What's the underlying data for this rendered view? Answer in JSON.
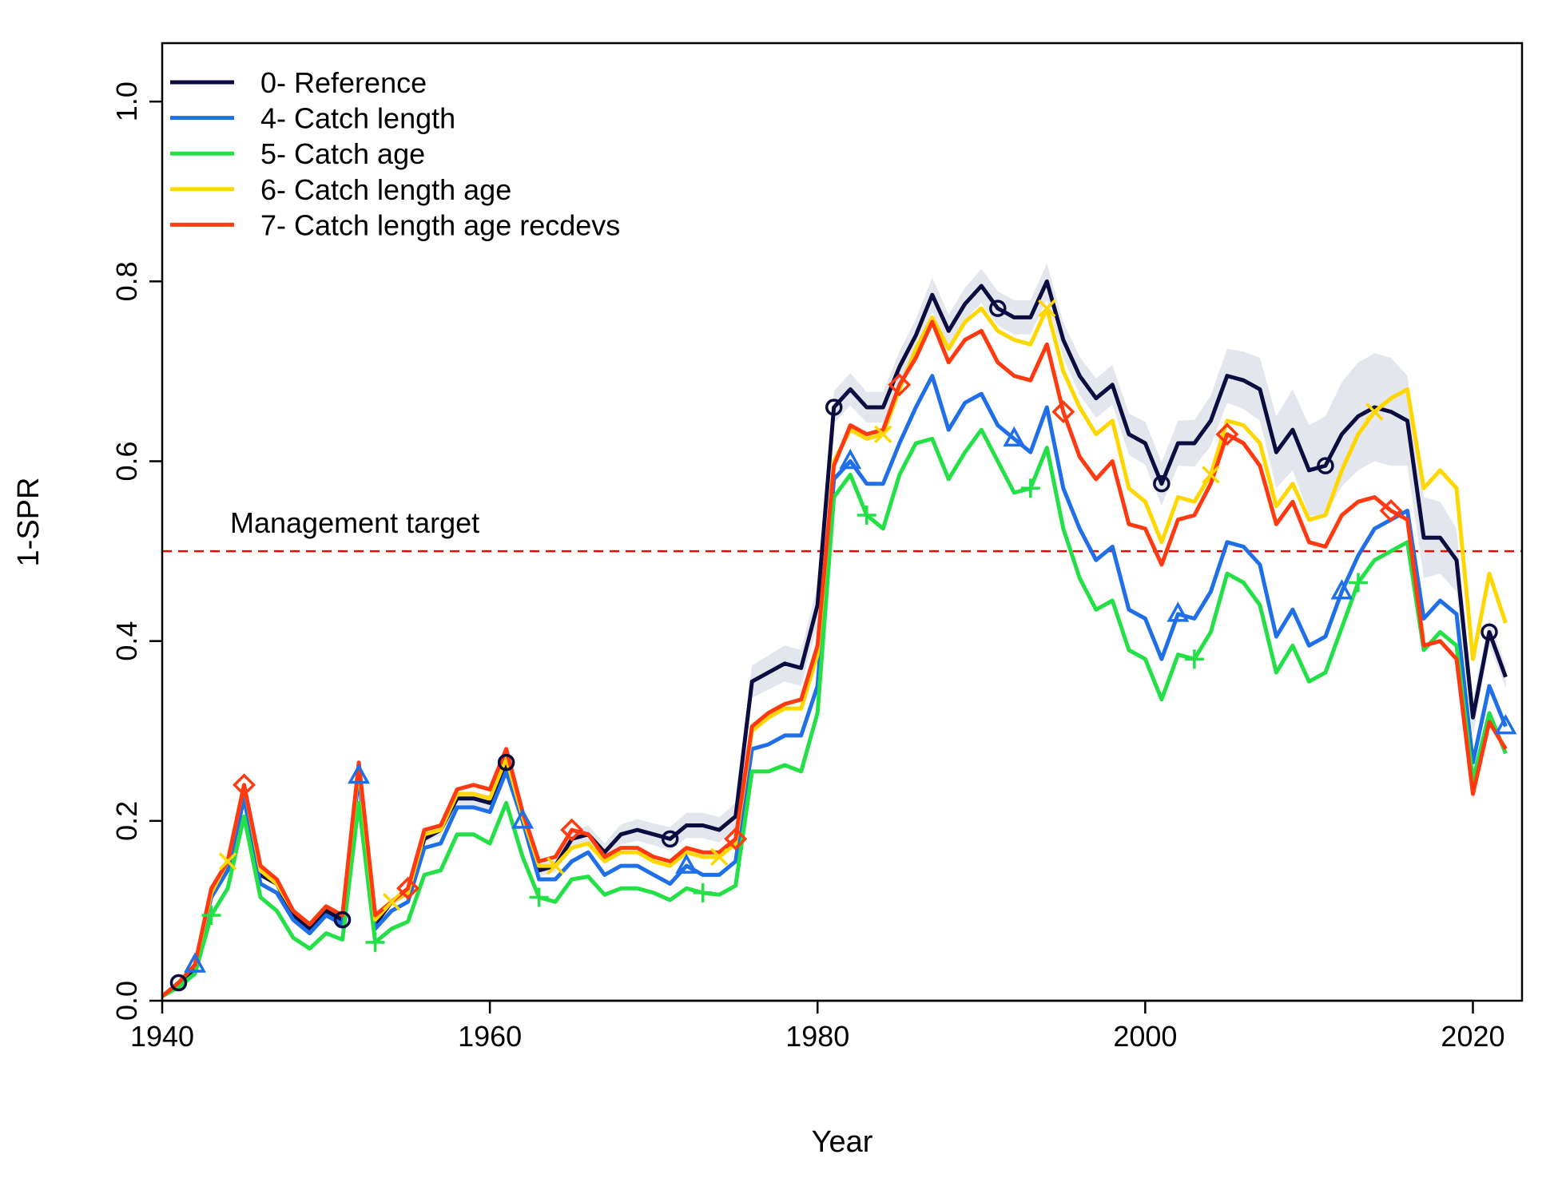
{
  "chart_data": {
    "type": "line",
    "title": "",
    "xlabel": "Year",
    "ylabel": "1-SPR",
    "xlim": [
      1940,
      2023
    ],
    "ylim": [
      0,
      1.065
    ],
    "x_ticks": [
      1940,
      1960,
      1980,
      2000,
      2020
    ],
    "x_tick_labels": [
      "1940",
      "1960",
      "1980",
      "2000",
      "2020"
    ],
    "y_ticks": [
      0,
      0.2,
      0.4,
      0.6,
      0.8,
      1.0
    ],
    "y_tick_labels": [
      "0.0",
      "0.2",
      "0.4",
      "0.6",
      "0.8",
      "1.0"
    ],
    "grid": false,
    "legend_position": "top-left",
    "reference_line": {
      "y": 0.5,
      "label": "Management target",
      "color": "#ff0000",
      "style": "dashed"
    },
    "x": [
      1940,
      1941,
      1942,
      1943,
      1944,
      1945,
      1946,
      1947,
      1948,
      1949,
      1950,
      1951,
      1952,
      1953,
      1954,
      1955,
      1956,
      1957,
      1958,
      1959,
      1960,
      1961,
      1962,
      1963,
      1964,
      1965,
      1966,
      1967,
      1968,
      1969,
      1970,
      1971,
      1972,
      1973,
      1974,
      1975,
      1976,
      1977,
      1978,
      1979,
      1980,
      1981,
      1982,
      1983,
      1984,
      1985,
      1986,
      1987,
      1988,
      1989,
      1990,
      1991,
      1992,
      1993,
      1994,
      1995,
      1996,
      1997,
      1998,
      1999,
      2000,
      2001,
      2002,
      2003,
      2004,
      2005,
      2006,
      2007,
      2008,
      2009,
      2010,
      2011,
      2012,
      2013,
      2014,
      2015,
      2016,
      2017,
      2018,
      2019,
      2020,
      2021,
      2022
    ],
    "series": [
      {
        "name": "0- Reference",
        "color": "#0b0c3f",
        "marker": "circle",
        "values": [
          0.005,
          0.02,
          0.035,
          0.12,
          0.155,
          0.235,
          0.14,
          0.13,
          0.095,
          0.08,
          0.1,
          0.09,
          0.255,
          0.085,
          0.11,
          0.12,
          0.18,
          0.19,
          0.225,
          0.225,
          0.22,
          0.265,
          0.2,
          0.145,
          0.15,
          0.18,
          0.185,
          0.165,
          0.185,
          0.19,
          0.185,
          0.18,
          0.195,
          0.195,
          0.19,
          0.205,
          0.355,
          0.365,
          0.375,
          0.37,
          0.44,
          0.66,
          0.68,
          0.66,
          0.66,
          0.705,
          0.74,
          0.785,
          0.745,
          0.775,
          0.795,
          0.77,
          0.76,
          0.76,
          0.8,
          0.735,
          0.695,
          0.67,
          0.685,
          0.63,
          0.62,
          0.575,
          0.62,
          0.62,
          0.645,
          0.695,
          0.69,
          0.68,
          0.61,
          0.635,
          0.59,
          0.595,
          0.63,
          0.65,
          0.66,
          0.655,
          0.645,
          0.515,
          0.515,
          0.49,
          0.315,
          0.41,
          0.36
        ],
        "marker_years": [
          1941,
          1951,
          1961,
          1971,
          1981,
          1991,
          2001,
          2011,
          2021
        ]
      },
      {
        "name": "4- Catch length",
        "color": "#1f6fe8",
        "marker": "triangle",
        "values": [
          0.005,
          0.02,
          0.04,
          0.115,
          0.145,
          0.225,
          0.13,
          0.12,
          0.09,
          0.075,
          0.095,
          0.085,
          0.25,
          0.08,
          0.1,
          0.11,
          0.17,
          0.175,
          0.215,
          0.215,
          0.21,
          0.255,
          0.2,
          0.135,
          0.135,
          0.155,
          0.165,
          0.14,
          0.15,
          0.15,
          0.14,
          0.13,
          0.15,
          0.14,
          0.14,
          0.155,
          0.28,
          0.285,
          0.295,
          0.295,
          0.35,
          0.58,
          0.6,
          0.575,
          0.575,
          0.62,
          0.66,
          0.695,
          0.635,
          0.665,
          0.675,
          0.64,
          0.625,
          0.61,
          0.66,
          0.57,
          0.525,
          0.49,
          0.505,
          0.435,
          0.425,
          0.38,
          0.43,
          0.425,
          0.455,
          0.51,
          0.505,
          0.485,
          0.405,
          0.435,
          0.395,
          0.405,
          0.455,
          0.495,
          0.525,
          0.535,
          0.545,
          0.425,
          0.445,
          0.43,
          0.265,
          0.35,
          0.305
        ],
        "marker_years": [
          1942,
          1952,
          1962,
          1972,
          1982,
          1992,
          2002,
          2012,
          2022
        ]
      },
      {
        "name": "5- Catch age",
        "color": "#22e045",
        "marker": "plus",
        "values": [
          0.005,
          0.015,
          0.03,
          0.095,
          0.125,
          0.205,
          0.115,
          0.1,
          0.07,
          0.058,
          0.075,
          0.068,
          0.22,
          0.065,
          0.08,
          0.088,
          0.14,
          0.145,
          0.185,
          0.185,
          0.175,
          0.22,
          0.16,
          0.115,
          0.11,
          0.135,
          0.138,
          0.118,
          0.125,
          0.125,
          0.12,
          0.112,
          0.125,
          0.12,
          0.118,
          0.128,
          0.255,
          0.255,
          0.262,
          0.255,
          0.32,
          0.56,
          0.585,
          0.54,
          0.525,
          0.585,
          0.62,
          0.625,
          0.58,
          0.61,
          0.635,
          0.6,
          0.565,
          0.57,
          0.615,
          0.525,
          0.47,
          0.435,
          0.445,
          0.39,
          0.38,
          0.335,
          0.385,
          0.38,
          0.41,
          0.475,
          0.465,
          0.44,
          0.365,
          0.395,
          0.355,
          0.365,
          0.415,
          0.465,
          0.49,
          0.5,
          0.51,
          0.39,
          0.41,
          0.395,
          0.245,
          0.32,
          0.275
        ],
        "marker_years": [
          1943,
          1953,
          1963,
          1973,
          1983,
          1993,
          2003,
          2013
        ]
      },
      {
        "name": "6- Catch length age",
        "color": "#ffd700",
        "marker": "x",
        "values": [
          0.005,
          0.02,
          0.04,
          0.12,
          0.155,
          0.24,
          0.145,
          0.13,
          0.1,
          0.085,
          0.105,
          0.095,
          0.26,
          0.09,
          0.11,
          0.12,
          0.185,
          0.19,
          0.23,
          0.23,
          0.225,
          0.27,
          0.205,
          0.15,
          0.15,
          0.17,
          0.175,
          0.155,
          0.165,
          0.165,
          0.155,
          0.15,
          0.165,
          0.16,
          0.16,
          0.175,
          0.3,
          0.315,
          0.325,
          0.325,
          0.385,
          0.6,
          0.635,
          0.625,
          0.63,
          0.68,
          0.725,
          0.76,
          0.725,
          0.755,
          0.77,
          0.745,
          0.735,
          0.73,
          0.77,
          0.7,
          0.66,
          0.63,
          0.645,
          0.57,
          0.555,
          0.51,
          0.56,
          0.555,
          0.585,
          0.645,
          0.64,
          0.62,
          0.55,
          0.575,
          0.535,
          0.54,
          0.59,
          0.63,
          0.655,
          0.67,
          0.68,
          0.57,
          0.59,
          0.57,
          0.38,
          0.475,
          0.42
        ],
        "marker_years": [
          1944,
          1954,
          1964,
          1974,
          1984,
          1994,
          2004,
          2014
        ]
      },
      {
        "name": "7- Catch length age recdevs",
        "color": "#ff3a10",
        "marker": "diamond",
        "values": [
          0.005,
          0.02,
          0.04,
          0.125,
          0.155,
          0.24,
          0.15,
          0.135,
          0.1,
          0.085,
          0.105,
          0.095,
          0.265,
          0.095,
          0.11,
          0.125,
          0.19,
          0.195,
          0.235,
          0.24,
          0.235,
          0.28,
          0.21,
          0.155,
          0.16,
          0.19,
          0.185,
          0.16,
          0.17,
          0.17,
          0.16,
          0.155,
          0.17,
          0.165,
          0.165,
          0.18,
          0.305,
          0.32,
          0.33,
          0.335,
          0.395,
          0.595,
          0.64,
          0.63,
          0.635,
          0.685,
          0.715,
          0.755,
          0.71,
          0.735,
          0.745,
          0.71,
          0.695,
          0.69,
          0.73,
          0.655,
          0.605,
          0.58,
          0.6,
          0.53,
          0.525,
          0.485,
          0.535,
          0.54,
          0.575,
          0.63,
          0.62,
          0.595,
          0.53,
          0.555,
          0.51,
          0.505,
          0.54,
          0.555,
          0.56,
          0.545,
          0.535,
          0.395,
          0.4,
          0.38,
          0.23,
          0.31,
          0.28
        ],
        "marker_years": [
          1945,
          1955,
          1965,
          1975,
          1985,
          1995,
          2005,
          2015
        ]
      }
    ],
    "uncertainty_band": {
      "series": "0- Reference",
      "color": "#e4e6ee",
      "half_width": [
        0,
        0,
        0,
        0.002,
        0.003,
        0.004,
        0.003,
        0.003,
        0.003,
        0.003,
        0.003,
        0.003,
        0.004,
        0.003,
        0.004,
        0.004,
        0.005,
        0.006,
        0.007,
        0.008,
        0.008,
        0.01,
        0.008,
        0.007,
        0.007,
        0.009,
        0.01,
        0.01,
        0.011,
        0.012,
        0.012,
        0.013,
        0.014,
        0.014,
        0.014,
        0.015,
        0.018,
        0.019,
        0.02,
        0.02,
        0.022,
        0.018,
        0.018,
        0.017,
        0.017,
        0.017,
        0.018,
        0.019,
        0.018,
        0.018,
        0.019,
        0.019,
        0.019,
        0.019,
        0.02,
        0.02,
        0.021,
        0.022,
        0.022,
        0.023,
        0.024,
        0.024,
        0.025,
        0.026,
        0.028,
        0.03,
        0.032,
        0.035,
        0.04,
        0.045,
        0.05,
        0.055,
        0.058,
        0.06,
        0.06,
        0.06,
        0.05,
        0.045,
        0.04,
        0.035,
        0.02,
        0.015,
        0.012
      ]
    }
  }
}
